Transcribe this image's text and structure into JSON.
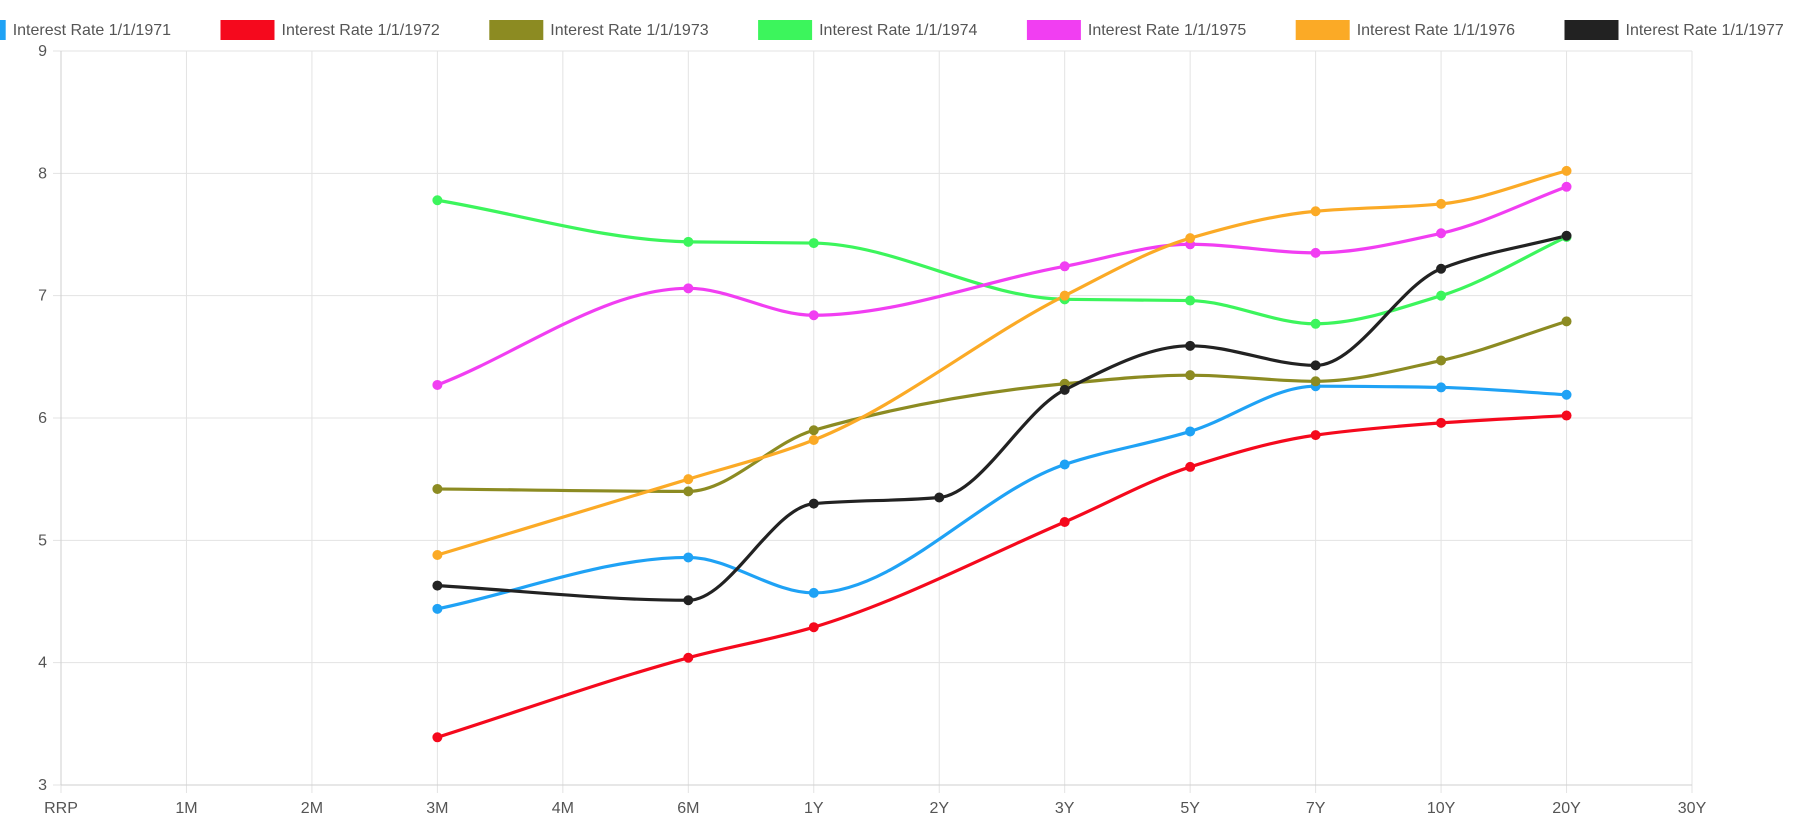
{
  "chart_data": {
    "type": "line",
    "title": "",
    "xlabel": "",
    "ylabel": "",
    "categories": [
      "RRP",
      "1M",
      "2M",
      "3M",
      "4M",
      "6M",
      "1Y",
      "2Y",
      "3Y",
      "5Y",
      "7Y",
      "10Y",
      "20Y",
      "30Y"
    ],
    "ylim": [
      3,
      9
    ],
    "yticks": [
      "3",
      "4",
      "5",
      "6",
      "7",
      "8",
      "9"
    ],
    "grid": true,
    "legend_position": "top",
    "series": [
      {
        "name": "Interest Rate 1/1/1971",
        "color": "#1fa2f5",
        "values": [
          null,
          null,
          null,
          4.44,
          null,
          4.86,
          4.57,
          null,
          5.62,
          5.89,
          6.26,
          6.25,
          6.19,
          null
        ]
      },
      {
        "name": "Interest Rate 1/1/1972",
        "color": "#f5091d",
        "values": [
          null,
          null,
          null,
          3.39,
          null,
          4.04,
          4.29,
          null,
          5.15,
          5.6,
          5.86,
          5.96,
          6.02,
          null
        ]
      },
      {
        "name": "Interest Rate 1/1/1973",
        "color": "#8c8b22",
        "values": [
          null,
          null,
          null,
          5.42,
          null,
          5.4,
          5.9,
          null,
          6.28,
          6.35,
          6.3,
          6.47,
          6.79,
          null
        ]
      },
      {
        "name": "Interest Rate 1/1/1974",
        "color": "#3cf55c",
        "values": [
          null,
          null,
          null,
          7.78,
          null,
          7.44,
          7.43,
          null,
          6.97,
          6.96,
          6.77,
          7.0,
          7.48,
          null
        ]
      },
      {
        "name": "Interest Rate 1/1/1975",
        "color": "#f13ef2",
        "values": [
          null,
          null,
          null,
          6.27,
          null,
          7.06,
          6.84,
          null,
          7.24,
          7.42,
          7.35,
          7.51,
          7.89,
          null
        ]
      },
      {
        "name": "Interest Rate 1/1/1976",
        "color": "#fbaa26",
        "values": [
          null,
          null,
          null,
          4.88,
          null,
          5.5,
          5.82,
          null,
          7.0,
          7.47,
          7.69,
          7.75,
          8.02,
          null
        ]
      },
      {
        "name": "Interest Rate 1/1/1977",
        "color": "#222222",
        "values": [
          null,
          null,
          null,
          4.63,
          null,
          4.51,
          5.3,
          5.35,
          6.23,
          6.59,
          6.43,
          7.22,
          7.49,
          null
        ]
      }
    ]
  }
}
